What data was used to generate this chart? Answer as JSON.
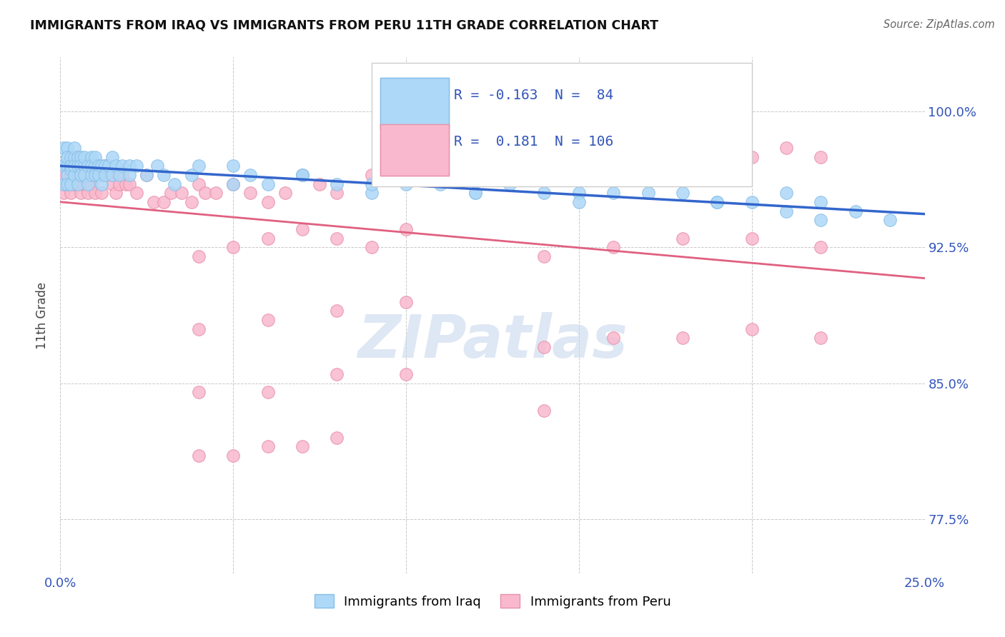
{
  "title": "IMMIGRANTS FROM IRAQ VS IMMIGRANTS FROM PERU 11TH GRADE CORRELATION CHART",
  "source": "Source: ZipAtlas.com",
  "ylabel": "11th Grade",
  "xlim": [
    0.0,
    0.25
  ],
  "ylim": [
    0.745,
    1.03
  ],
  "yticks": [
    0.775,
    0.85,
    0.925,
    1.0
  ],
  "ytick_labels": [
    "77.5%",
    "85.0%",
    "92.5%",
    "100.0%"
  ],
  "xticks": [
    0.0,
    0.05,
    0.1,
    0.15,
    0.2,
    0.25
  ],
  "xtick_labels": [
    "0.0%",
    "",
    "",
    "",
    "",
    "25.0%"
  ],
  "iraq_R": -0.163,
  "iraq_N": 84,
  "peru_R": 0.181,
  "peru_N": 106,
  "iraq_color": "#ADD8F7",
  "iraq_edge": "#89BEE8",
  "peru_color": "#F9B8CE",
  "peru_edge": "#E890A8",
  "iraq_line_color": "#3366CC",
  "peru_line_color": "#E06080",
  "axis_color": "#3355BB",
  "legend_label_iraq": "Immigrants from Iraq",
  "legend_label_peru": "Immigrants from Peru",
  "background_color": "#ffffff",
  "grid_color": "#bbbbbb",
  "watermark_text": "ZIPatlas",
  "watermark_color": "#c8d8ee",
  "iraq_x": [
    0.001,
    0.001,
    0.001,
    0.002,
    0.002,
    0.002,
    0.002,
    0.002,
    0.002,
    0.003,
    0.003,
    0.003,
    0.003,
    0.004,
    0.004,
    0.004,
    0.004,
    0.005,
    0.005,
    0.005,
    0.006,
    0.006,
    0.006,
    0.007,
    0.007,
    0.007,
    0.008,
    0.008,
    0.009,
    0.009,
    0.009,
    0.01,
    0.01,
    0.01,
    0.011,
    0.011,
    0.012,
    0.012,
    0.013,
    0.013,
    0.014,
    0.015,
    0.015,
    0.016,
    0.017,
    0.018,
    0.02,
    0.02,
    0.022,
    0.025,
    0.028,
    0.03,
    0.033,
    0.038,
    0.04,
    0.05,
    0.055,
    0.06,
    0.07,
    0.08,
    0.09,
    0.1,
    0.12,
    0.15,
    0.18,
    0.19,
    0.21,
    0.22,
    0.23,
    0.24,
    0.05,
    0.07,
    0.09,
    0.11,
    0.12,
    0.13,
    0.14,
    0.16,
    0.15,
    0.17,
    0.19,
    0.2,
    0.21,
    0.22
  ],
  "iraq_y": [
    0.97,
    0.96,
    0.98,
    0.97,
    0.975,
    0.965,
    0.96,
    0.98,
    0.975,
    0.968,
    0.975,
    0.97,
    0.96,
    0.975,
    0.965,
    0.97,
    0.98,
    0.975,
    0.97,
    0.96,
    0.975,
    0.97,
    0.965,
    0.97,
    0.965,
    0.975,
    0.97,
    0.96,
    0.975,
    0.965,
    0.97,
    0.97,
    0.965,
    0.975,
    0.97,
    0.965,
    0.97,
    0.96,
    0.97,
    0.965,
    0.97,
    0.965,
    0.975,
    0.97,
    0.965,
    0.97,
    0.97,
    0.965,
    0.97,
    0.965,
    0.97,
    0.965,
    0.96,
    0.965,
    0.97,
    0.96,
    0.965,
    0.96,
    0.965,
    0.96,
    0.955,
    0.96,
    0.955,
    0.955,
    0.955,
    0.95,
    0.955,
    0.95,
    0.945,
    0.94,
    0.97,
    0.965,
    0.96,
    0.96,
    0.955,
    0.96,
    0.955,
    0.955,
    0.95,
    0.955,
    0.95,
    0.95,
    0.945,
    0.94
  ],
  "peru_x": [
    0.001,
    0.001,
    0.001,
    0.002,
    0.002,
    0.002,
    0.003,
    0.003,
    0.003,
    0.003,
    0.004,
    0.004,
    0.004,
    0.004,
    0.005,
    0.005,
    0.005,
    0.006,
    0.006,
    0.006,
    0.007,
    0.007,
    0.007,
    0.008,
    0.008,
    0.008,
    0.009,
    0.009,
    0.01,
    0.01,
    0.01,
    0.011,
    0.011,
    0.012,
    0.012,
    0.013,
    0.014,
    0.015,
    0.015,
    0.016,
    0.017,
    0.018,
    0.019,
    0.02,
    0.022,
    0.025,
    0.027,
    0.03,
    0.032,
    0.035,
    0.038,
    0.04,
    0.042,
    0.045,
    0.05,
    0.055,
    0.06,
    0.065,
    0.07,
    0.075,
    0.08,
    0.09,
    0.1,
    0.11,
    0.12,
    0.13,
    0.04,
    0.05,
    0.06,
    0.07,
    0.08,
    0.09,
    0.1,
    0.04,
    0.06,
    0.08,
    0.1,
    0.04,
    0.06,
    0.08,
    0.1,
    0.04,
    0.05,
    0.06,
    0.07,
    0.08,
    0.14,
    0.15,
    0.16,
    0.17,
    0.18,
    0.19,
    0.2,
    0.21,
    0.22,
    0.14,
    0.16,
    0.18,
    0.2,
    0.22,
    0.14,
    0.16,
    0.18,
    0.2,
    0.22,
    0.14
  ],
  "peru_y": [
    0.96,
    0.955,
    0.965,
    0.965,
    0.96,
    0.97,
    0.965,
    0.96,
    0.97,
    0.955,
    0.965,
    0.97,
    0.96,
    0.975,
    0.965,
    0.97,
    0.975,
    0.965,
    0.96,
    0.955,
    0.97,
    0.96,
    0.965,
    0.965,
    0.955,
    0.97,
    0.965,
    0.96,
    0.965,
    0.97,
    0.955,
    0.965,
    0.97,
    0.965,
    0.955,
    0.97,
    0.965,
    0.965,
    0.96,
    0.955,
    0.96,
    0.965,
    0.96,
    0.96,
    0.955,
    0.965,
    0.95,
    0.95,
    0.955,
    0.955,
    0.95,
    0.96,
    0.955,
    0.955,
    0.96,
    0.955,
    0.95,
    0.955,
    0.965,
    0.96,
    0.955,
    0.965,
    0.965,
    0.97,
    0.97,
    0.975,
    0.92,
    0.925,
    0.93,
    0.935,
    0.93,
    0.925,
    0.935,
    0.88,
    0.885,
    0.89,
    0.895,
    0.845,
    0.845,
    0.855,
    0.855,
    0.81,
    0.81,
    0.815,
    0.815,
    0.82,
    0.965,
    0.97,
    0.965,
    0.97,
    0.975,
    0.97,
    0.975,
    0.98,
    0.975,
    0.92,
    0.925,
    0.93,
    0.93,
    0.925,
    0.87,
    0.875,
    0.875,
    0.88,
    0.875,
    0.835
  ]
}
